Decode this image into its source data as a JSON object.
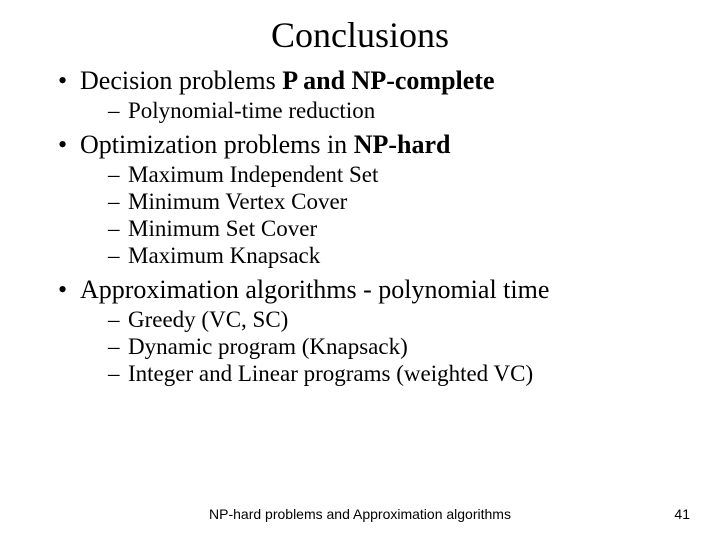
{
  "title": "Conclusions",
  "bullets": [
    {
      "text_pre": "Decision problems ",
      "text_bold": "P and NP-complete",
      "sub": [
        "Polynomial-time reduction"
      ]
    },
    {
      "text_pre": "Optimization problems in ",
      "text_bold": "NP-hard",
      "sub": [
        "Maximum Independent Set",
        "Minimum Vertex Cover",
        "Minimum Set Cover",
        "Maximum Knapsack"
      ]
    },
    {
      "text_pre": "Approximation algorithms - polynomial time",
      "text_bold": "",
      "sub": [
        "Greedy (VC, SC)",
        "Dynamic program (Knapsack)",
        "Integer and Linear programs (weighted VC)"
      ]
    }
  ],
  "footer_center": "NP-hard problems and Approximation algorithms",
  "footer_page": "41"
}
